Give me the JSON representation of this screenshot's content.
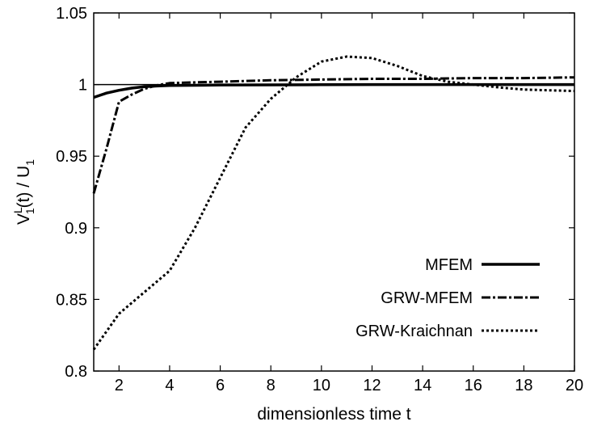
{
  "chart_data": {
    "type": "line",
    "xlabel": "dimensionless time t",
    "ylabel": {
      "base": "V",
      "sup": "L",
      "sub": "1",
      "mid": "(t) / U",
      "sub2": "1"
    },
    "xlim": [
      1,
      20
    ],
    "ylim": [
      0.8,
      1.05
    ],
    "xticks": [
      2,
      4,
      6,
      8,
      10,
      12,
      14,
      16,
      18,
      20
    ],
    "yticks": [
      0.8,
      0.85,
      0.9,
      0.95,
      1,
      1.05
    ],
    "ytick_labels": [
      "0.8",
      "0.85",
      "0.9",
      "0.95",
      "1",
      "1.05"
    ],
    "grid": false,
    "legend_position": "bottom-right",
    "reference_line": {
      "y": 1,
      "color": "#000000"
    },
    "series": [
      {
        "name": "MFEM",
        "style": "solid",
        "color": "#000000",
        "x": [
          1,
          1.5,
          2,
          2.5,
          3,
          3.5,
          4,
          5,
          6,
          8,
          10,
          12,
          14,
          16,
          18,
          20
        ],
        "y": [
          0.991,
          0.994,
          0.996,
          0.9975,
          0.9985,
          0.999,
          0.9993,
          0.9995,
          0.9997,
          0.9998,
          0.9999,
          1.0,
          1.0,
          1.0,
          1.0,
          1.0
        ]
      },
      {
        "name": "GRW-MFEM",
        "style": "dash-dot",
        "color": "#000000",
        "x": [
          1,
          1.5,
          2,
          2.5,
          3,
          3.5,
          4,
          5,
          6,
          8,
          10,
          12,
          14,
          16,
          18,
          20
        ],
        "y": [
          0.924,
          0.955,
          0.988,
          0.993,
          0.997,
          0.9995,
          1.001,
          1.0015,
          1.002,
          1.003,
          1.0035,
          1.004,
          1.004,
          1.0045,
          1.0045,
          1.005
        ]
      },
      {
        "name": "GRW-Kraichnan",
        "style": "dotted",
        "color": "#000000",
        "x": [
          1,
          2,
          3,
          4,
          5,
          6,
          7,
          8,
          9,
          10,
          11,
          12,
          13,
          14,
          15,
          16,
          17,
          18,
          19,
          20
        ],
        "y": [
          0.815,
          0.84,
          0.855,
          0.87,
          0.9,
          0.935,
          0.97,
          0.99,
          1.005,
          1.016,
          1.0195,
          1.0185,
          1.013,
          1.006,
          1.002,
          1.0,
          0.998,
          0.9965,
          0.996,
          0.9955
        ]
      }
    ]
  }
}
